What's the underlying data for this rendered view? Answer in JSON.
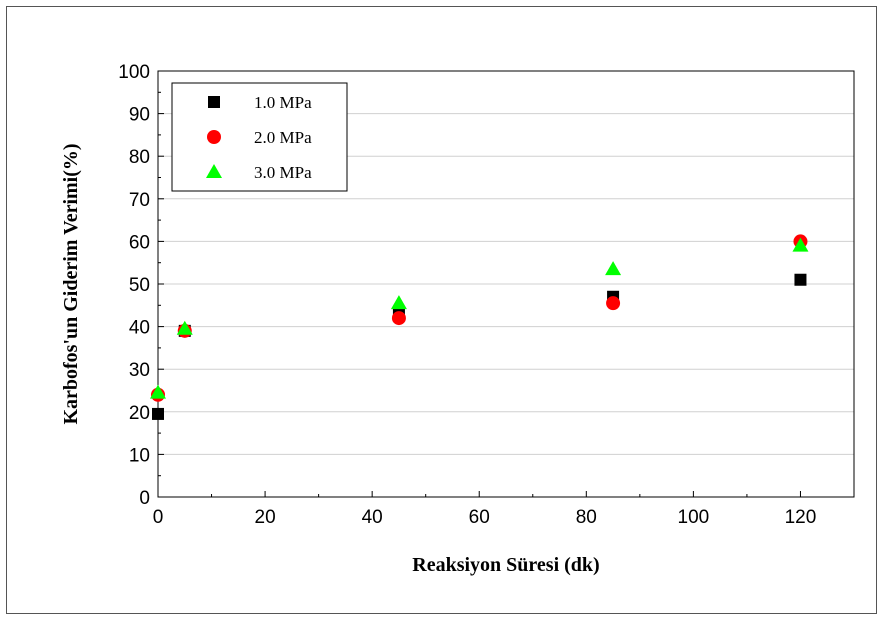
{
  "chart_data": {
    "type": "scatter",
    "title": "",
    "xlabel": "Reaksiyon Süresi (dk)",
    "ylabel": "Karbofos'un Giderim Verimi(%)",
    "xlim": [
      0,
      130
    ],
    "ylim": [
      0,
      100
    ],
    "x_ticks": [
      0,
      20,
      40,
      60,
      80,
      100,
      120
    ],
    "y_ticks": [
      0,
      10,
      20,
      30,
      40,
      50,
      60,
      70,
      80,
      90,
      100
    ],
    "grid": "horizontal",
    "legend_position": "top-left",
    "series": [
      {
        "name": "1.0 MPa",
        "marker": "square",
        "color": "#000000",
        "x": [
          0,
          5,
          45,
          85,
          120
        ],
        "y": [
          19.5,
          39.0,
          43.0,
          47.0,
          51.0
        ]
      },
      {
        "name": "2.0 MPa",
        "marker": "circle",
        "color": "#ff0000",
        "x": [
          0,
          5,
          45,
          85,
          120
        ],
        "y": [
          24.0,
          39.0,
          42.0,
          45.5,
          60.0
        ]
      },
      {
        "name": "3.0 MPa",
        "marker": "triangle",
        "color": "#00ff00",
        "x": [
          0,
          5,
          45,
          85,
          120
        ],
        "y": [
          24.5,
          39.5,
          45.5,
          53.5,
          59.0
        ]
      }
    ]
  }
}
